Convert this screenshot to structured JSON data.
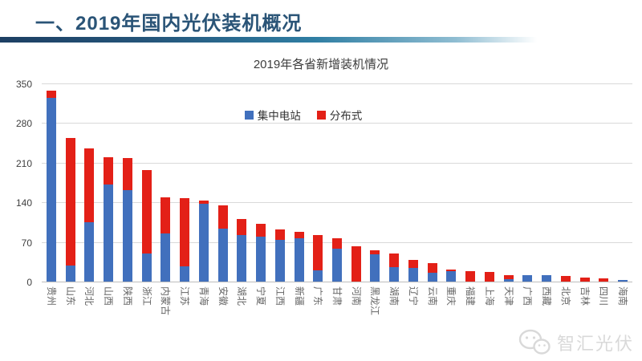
{
  "header": {
    "title": "一、2019年国内光伏装机概况"
  },
  "chart_data": {
    "type": "bar",
    "stacked": true,
    "title": "2019年各省新增装机情况",
    "categories": [
      "贵州",
      "山东",
      "河北",
      "山西",
      "陕西",
      "浙江",
      "内蒙古",
      "江苏",
      "青海",
      "安徽",
      "湖北",
      "宁夏",
      "江西",
      "新疆",
      "广东",
      "甘肃",
      "河南",
      "黑龙江",
      "湖南",
      "辽宁",
      "云南",
      "重庆",
      "福建",
      "上海",
      "天津",
      "广西",
      "西藏",
      "北京",
      "吉林",
      "四川",
      "海南"
    ],
    "series": [
      {
        "name": "集中电站",
        "color": "#4170bd",
        "values": [
          324,
          28,
          105,
          172,
          161,
          50,
          85,
          27,
          138,
          94,
          82,
          80,
          74,
          76,
          20,
          58,
          0,
          48,
          26,
          24,
          15,
          19,
          0,
          0,
          4,
          11,
          11,
          0,
          0,
          0,
          3
        ]
      },
      {
        "name": "分布式",
        "color": "#e32017",
        "values": [
          13,
          226,
          130,
          48,
          57,
          147,
          64,
          121,
          5,
          41,
          28,
          22,
          18,
          12,
          62,
          19,
          62,
          7,
          24,
          15,
          17,
          2,
          19,
          17,
          8,
          0,
          0,
          10,
          7,
          6,
          0
        ]
      }
    ],
    "ylim": [
      0,
      350
    ],
    "yticks": [
      0,
      70,
      140,
      210,
      280,
      350
    ],
    "grid": true,
    "legend_position": "top-center-inside"
  },
  "watermark": {
    "text": "智汇光伏",
    "icon": "wechat-icon"
  },
  "colors": {
    "title": "#2a5477",
    "underline_start": "#1d3f63",
    "underline_mid": "#2f7ea3",
    "gridline": "#d9d9d9",
    "axis_line": "#bdbdbd",
    "watermark": "#d8d8d8"
  }
}
